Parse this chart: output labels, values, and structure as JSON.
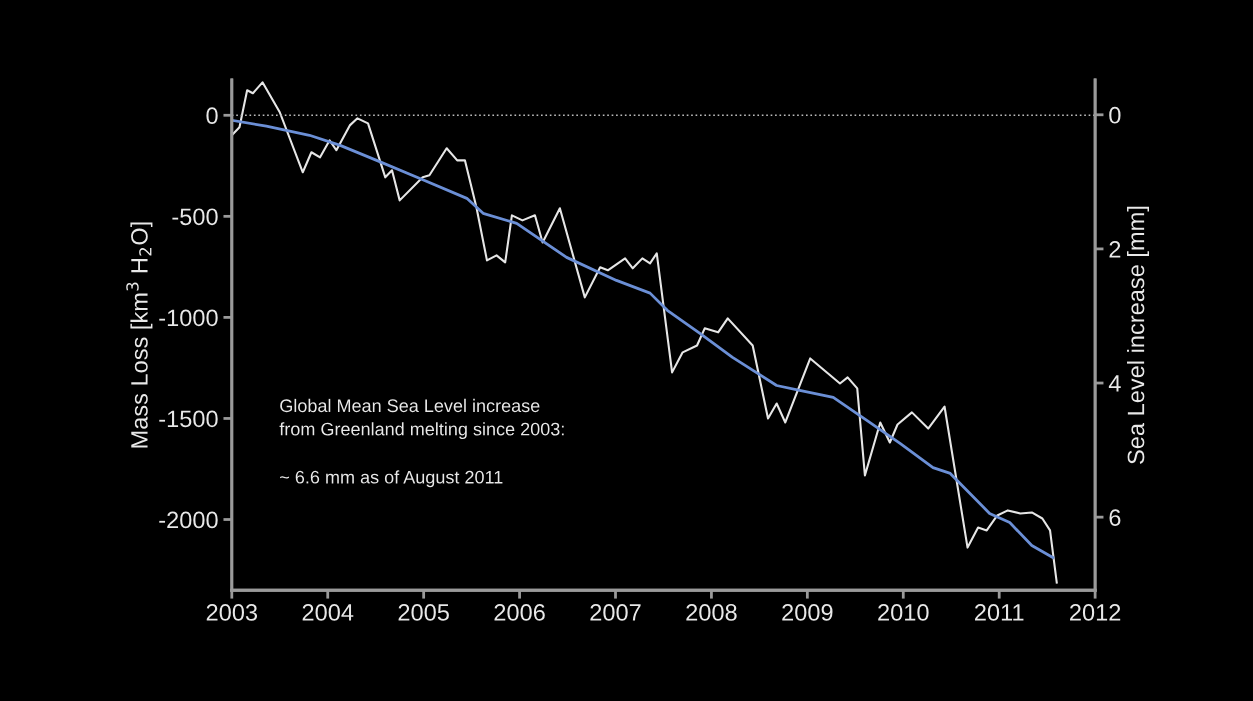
{
  "chart_data": {
    "type": "line",
    "ylabel": "Mass Loss [km$^{3}$ H$_{2}$O]",
    "y2label": "Sea Level increase [mm]",
    "annotations": [
      "Global Mean Sea Level increase\nfrom Greenland melting since 2003:",
      "~ 6.6 mm as of August 2011"
    ],
    "series": [
      {
        "color": "#e6e6e6",
        "x": [
          2003.0,
          2003.08,
          2003.16,
          2003.22,
          2003.32,
          2003.5,
          2003.74,
          2003.83,
          2003.92,
          2004.02,
          2004.09,
          2004.23,
          2004.31,
          2004.42,
          2004.6,
          2004.67,
          2004.75,
          2004.99,
          2005.06,
          2005.24,
          2005.35,
          2005.43,
          2005.55,
          2005.66,
          2005.76,
          2005.85,
          2005.92,
          2006.03,
          2006.16,
          2006.24,
          2006.42,
          2006.68,
          2006.84,
          2006.92,
          2007.1,
          2007.18,
          2007.28,
          2007.36,
          2007.43,
          2007.59,
          2007.7,
          2007.85,
          2007.93,
          2008.07,
          2008.17,
          2008.43,
          2008.59,
          2008.68,
          2008.77,
          2009.03,
          2009.34,
          2009.42,
          2009.52,
          2009.6,
          2009.76,
          2009.86,
          2009.94,
          2010.09,
          2010.26,
          2010.43,
          2010.67,
          2010.78,
          2010.87,
          2010.98,
          2011.09,
          2011.22,
          2011.34,
          2011.45,
          2011.53,
          2011.6
        ],
        "values": [
          -99,
          -59,
          124,
          109,
          163,
          15,
          -282,
          -183,
          -208,
          -124,
          -173,
          -50,
          -15,
          -40,
          -307,
          -272,
          -421,
          -307,
          -297,
          -163,
          -223,
          -223,
          -455,
          -718,
          -693,
          -728,
          -495,
          -520,
          -495,
          -629,
          -460,
          -901,
          -752,
          -767,
          -708,
          -757,
          -708,
          -733,
          -683,
          -1272,
          -1173,
          -1139,
          -1054,
          -1074,
          -1005,
          -1139,
          -1500,
          -1426,
          -1520,
          -1203,
          -1327,
          -1297,
          -1351,
          -1782,
          -1520,
          -1619,
          -1530,
          -1470,
          -1550,
          -1441,
          -2139,
          -2040,
          -2054,
          -1980,
          -1955,
          -1970,
          -1965,
          -1995,
          -2054,
          -2312
        ]
      },
      {
        "color": "#6b8fd6",
        "x": [
          2003.0,
          2003.36,
          2003.81,
          2004.13,
          2004.51,
          2004.93,
          2005.45,
          2005.62,
          2005.97,
          2006.49,
          2007.01,
          2007.36,
          2007.54,
          2007.88,
          2008.22,
          2008.68,
          2008.92,
          2009.27,
          2009.62,
          2009.97,
          2010.31,
          2010.49,
          2010.9,
          2011.11,
          2011.34,
          2011.56
        ],
        "values": [
          -25,
          -54,
          -99,
          -149,
          -223,
          -307,
          -411,
          -485,
          -535,
          -703,
          -817,
          -880,
          -965,
          -1079,
          -1198,
          -1337,
          -1361,
          -1396,
          -1510,
          -1625,
          -1743,
          -1772,
          -1970,
          -2015,
          -2129,
          -2188
        ]
      }
    ],
    "xlim": [
      2003,
      2012
    ],
    "xticks": [
      2003,
      2004,
      2005,
      2006,
      2007,
      2008,
      2009,
      2010,
      2011,
      2012
    ],
    "ylim": [
      -2350,
      175
    ],
    "yticks": [
      -2000,
      -1500,
      -1000,
      -500,
      0
    ],
    "y2lim": [
      7.09,
      -0.52
    ],
    "y2ticks": [
      0,
      2,
      4,
      6
    ],
    "ref_lines": [
      {
        "axis": "y",
        "value": 0,
        "color": "#bbbbbb",
        "line_style": "dotted"
      }
    ],
    "grid": false,
    "marker": "none",
    "line_style": "solid"
  }
}
